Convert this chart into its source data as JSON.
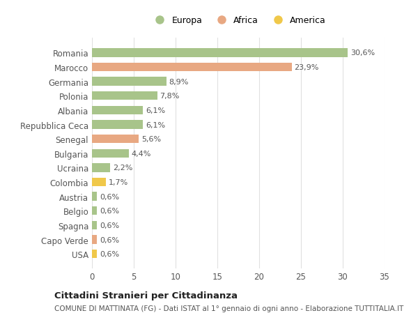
{
  "categories": [
    "Romania",
    "Marocco",
    "Germania",
    "Polonia",
    "Albania",
    "Repubblica Ceca",
    "Senegal",
    "Bulgaria",
    "Ucraina",
    "Colombia",
    "Austria",
    "Belgio",
    "Spagna",
    "Capo Verde",
    "USA"
  ],
  "values": [
    30.6,
    23.9,
    8.9,
    7.8,
    6.1,
    6.1,
    5.6,
    4.4,
    2.2,
    1.7,
    0.6,
    0.6,
    0.6,
    0.6,
    0.6
  ],
  "labels": [
    "30,6%",
    "23,9%",
    "8,9%",
    "7,8%",
    "6,1%",
    "6,1%",
    "5,6%",
    "4,4%",
    "2,2%",
    "1,7%",
    "0,6%",
    "0,6%",
    "0,6%",
    "0,6%",
    "0,6%"
  ],
  "continents": [
    "Europa",
    "Africa",
    "Europa",
    "Europa",
    "Europa",
    "Europa",
    "Africa",
    "Europa",
    "Europa",
    "America",
    "Europa",
    "Europa",
    "Europa",
    "Africa",
    "America"
  ],
  "colors": {
    "Europa": "#a8c48a",
    "Africa": "#e8a882",
    "America": "#f0c84a"
  },
  "legend_items": [
    "Europa",
    "Africa",
    "America"
  ],
  "title": "Cittadini Stranieri per Cittadinanza",
  "subtitle": "COMUNE DI MATTINATA (FG) - Dati ISTAT al 1° gennaio di ogni anno - Elaborazione TUTTITALIA.IT",
  "xlim": [
    0,
    35
  ],
  "xticks": [
    0,
    5,
    10,
    15,
    20,
    25,
    30,
    35
  ],
  "bg_color": "#ffffff",
  "grid_color": "#e0e0e0",
  "bar_height": 0.6
}
